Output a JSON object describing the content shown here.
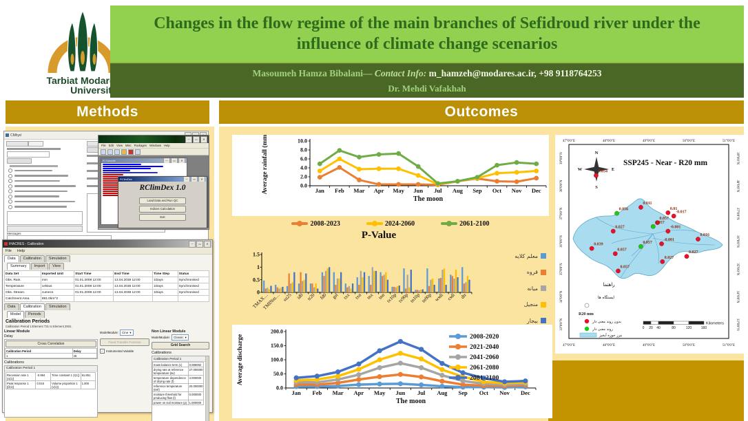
{
  "header": {
    "logo": {
      "line1": "Tarbiat Modares",
      "line2": "University"
    },
    "title": "Changes in the flow regime of the main branches of Sefidroud river under the influence of climate change scenarios",
    "author": {
      "name": "Masoumeh Hamza Bibalani",
      "separator": "— ",
      "contact_label": "Contact Info:",
      "contact_value": "m_hamzeh@modares.ac.ir, +98 9118764253",
      "supervisor": "Dr. Mehdi Vafakhah"
    }
  },
  "sections": {
    "methods_label": "Methods",
    "outcomes_label": "Outcomes"
  },
  "icons": {
    "minimize": "─",
    "maximize": "▭",
    "close": "✕",
    "dropdown": "▾",
    "check": "✓"
  },
  "methods": {
    "cmhyd": {
      "window_title": "CMhyd",
      "messages_label": "Messages"
    },
    "rgui": {
      "menu_items": [
        "File",
        "Edit",
        "View",
        "Misc",
        "Packages",
        "Windows",
        "Help"
      ],
      "console_title": "R Console",
      "rclimdex": {
        "dialog_title": "RClimDex",
        "heading": "RClimDex 1.0",
        "buttons": [
          "Load Data and Run QC",
          "Indices Calculation",
          "Exit"
        ]
      }
    },
    "ihacres": {
      "window_title": "IHACRES - Calibration",
      "menu_items": [
        "File",
        "Help"
      ],
      "tabs": [
        "Data",
        "Calibration",
        "Simulation"
      ],
      "subtabs": [
        "Summary",
        "Import",
        "View"
      ],
      "data_table": {
        "headers": [
          "Data Set",
          "Imported Unit",
          "Start Time",
          "End Time",
          "Time Step",
          "Status"
        ],
        "rows": [
          [
            "Obs. Rain.",
            "mm",
            "01.01.2008 12:00",
            "13.04.2038 12:00",
            "1Days",
            "Synchronised"
          ],
          [
            "Temperature",
            "celsius",
            "01.01.2008 12:00",
            "13.04.2038 12:00",
            "1Days",
            "Synchronised"
          ],
          [
            "Obs. Stream.",
            "cumecs",
            "01.01.2008 12:00",
            "13.04.2038 12:00",
            "1Days",
            "Synchronised"
          ],
          [
            "Catchment Area",
            "891.0km^2",
            "",
            "",
            "",
            ""
          ]
        ]
      },
      "tabs2": [
        "Data",
        "Calibration",
        "Simulation"
      ],
      "subtabs2": [
        "Model",
        "Periods"
      ],
      "calibration_periods_title": "Calibration Periods",
      "calibration_periods_note": "Calibration Period 1:Element 731 to Element 2931.",
      "linear_module_label": "Linear Module",
      "nonlinear_module_label": "Non Linear Module",
      "delay_label": "Delay",
      "model_module_label": "ModelModule:",
      "linear_model_value": "Cine",
      "nonlinear_model_value": "Classic",
      "cross_correlation_label": "Cross Correlation",
      "delay_table_headers": [
        "Calibration Period",
        "Delay"
      ],
      "delay_table_row": [
        "1",
        "26"
      ],
      "fixed_transfer_function_label": "Fixed Transfer Function",
      "instrumental_variable_label": "Instrumental Variable",
      "grid_search_label": "Grid Search",
      "calibrations_label": "Calibrations",
      "calibration_period_header": "Calibration Period 1",
      "linear_params": [
        {
          "label": "Recession rate 1 (a(1))",
          "value": "-0.984"
        },
        {
          "label": "Time constant 1 (τ(1))",
          "value": "61.851"
        },
        {
          "label": "Peak response 1 (β(1))",
          "value": "0.016"
        },
        {
          "label": "Volume proportion 1 (v(1))",
          "value": "1.000"
        }
      ],
      "nonlinear_params": [
        {
          "label": "mass balance term (c)",
          "value": "0.086082"
        },
        {
          "label": "drying rate at reference temperature (tw)",
          "value": "27.000000"
        },
        {
          "label": "temperature dependence of drying rate (f)",
          "value": "4.000000"
        },
        {
          "label": "reference temperature (tref)",
          "value": "20.000000"
        },
        {
          "label": "moisture threshold for producing flow (l)",
          "value": "0.000000"
        },
        {
          "label": "power on soil moisture (p)",
          "value": "1.000000"
        }
      ]
    }
  },
  "chart_data": [
    {
      "id": "rainfall",
      "type": "line",
      "xlabel": "The moon",
      "ylabel": "Average rainfall (mm)",
      "ylim": [
        0,
        10
      ],
      "yticks": [
        0,
        2,
        4,
        6,
        8,
        10
      ],
      "grid": false,
      "legend_position": "bottom",
      "categories": [
        "Jan",
        "Feb",
        "Mar",
        "Apr",
        "May",
        "Jun",
        "Jul",
        "Aug",
        "Sep",
        "Oct",
        "Nov",
        "Dec"
      ],
      "series": [
        {
          "name": "2008-2023",
          "color": "#E97F32",
          "values": [
            1.9,
            4.1,
            1.3,
            0.3,
            0.3,
            0.3,
            0.2,
            1.0,
            1.6,
            1.0,
            0.9,
            1.7
          ]
        },
        {
          "name": "2024-2060",
          "color": "#FFC000",
          "values": [
            3.3,
            6.0,
            3.7,
            3.8,
            3.8,
            2.3,
            0.3,
            1.0,
            1.7,
            2.8,
            3.0,
            3.3
          ]
        },
        {
          "name": "2061-2100",
          "color": "#6FAC46",
          "values": [
            4.9,
            7.9,
            6.4,
            7.0,
            7.2,
            4.3,
            0.5,
            1.0,
            1.9,
            4.6,
            5.2,
            4.9
          ]
        }
      ]
    },
    {
      "id": "pvalue",
      "type": "bar",
      "title": "P-Value",
      "ylim": [
        0,
        1.5
      ],
      "yticks": [
        0,
        0.5,
        1,
        1.5
      ],
      "ytick_labels": [
        "0",
        "0.5",
        "1",
        "1.5"
      ],
      "grid": false,
      "legend_position": "right",
      "categories": [
        "TMAX…",
        "TMINm…",
        "su25",
        "id0",
        "tr20",
        "fd0",
        "gsl",
        "txx",
        "txn",
        "tnx",
        "tnn",
        "tx10p",
        "tx90p",
        "tn10p",
        "tn90p",
        "wsdi",
        "csdi",
        "dtr"
      ],
      "series": [
        {
          "name": "معلم كلايه",
          "color": "#5B9BD5",
          "values": [
            0.47,
            0.3,
            0.25,
            0.35,
            0.35,
            0.8,
            0.8,
            0.35,
            0.6,
            0.65,
            0.8,
            0.22,
            0.95,
            0.1,
            0.95,
            0.55,
            0.7,
            1.0
          ]
        },
        {
          "name": "قروه",
          "color": "#ED7D31",
          "values": [
            0.15,
            0.2,
            0.75,
            0.8,
            0.35,
            0.65,
            0.3,
            0.2,
            0.3,
            0.3,
            0.65,
            0.22,
            0.15,
            0.1,
            0.25,
            0.57,
            0.65,
            0.35
          ]
        },
        {
          "name": "ميانه",
          "color": "#A5A5A5",
          "values": [
            0.18,
            0.15,
            0.35,
            0.45,
            0.2,
            0.85,
            0.55,
            0.25,
            0.85,
            1.0,
            0.7,
            0.2,
            0.7,
            0.08,
            0.5,
            0.9,
            0.55,
            0.4
          ]
        },
        {
          "name": "منجيل",
          "color": "#FFC000",
          "values": [
            0.12,
            0.18,
            0.4,
            0.5,
            0.35,
            0.95,
            0.55,
            0.15,
            0.6,
            0.85,
            0.8,
            0.25,
            0.2,
            0.1,
            0.55,
            0.95,
            0.9,
            0.65
          ]
        },
        {
          "name": "بيجار",
          "color": "#4472C4",
          "values": [
            0.26,
            0.22,
            0.8,
            0.75,
            0.15,
            1.0,
            0.8,
            0.35,
            0.8,
            0.85,
            0.5,
            0.27,
            0.9,
            0.12,
            0.3,
            0.3,
            0.6,
            0.5
          ]
        }
      ]
    },
    {
      "id": "discharge",
      "type": "line",
      "xlabel": "The moon",
      "ylabel": "Average discharge",
      "ylim": [
        0,
        200
      ],
      "yticks": [
        0,
        50,
        100,
        150,
        200
      ],
      "grid": false,
      "legend_position": "inside-right",
      "categories": [
        "Jan",
        "Feb",
        "Mar",
        "Apr",
        "May",
        "Jun",
        "Jul",
        "Aug",
        "Sep",
        "Oct",
        "Nov",
        "Dec"
      ],
      "series": [
        {
          "name": "2008-2020",
          "color": "#5B9BD5",
          "values": [
            5,
            5,
            7,
            12,
            14,
            15,
            11,
            6,
            3,
            3,
            2,
            4
          ]
        },
        {
          "name": "2021-2040",
          "color": "#ED7D31",
          "values": [
            12,
            12,
            18,
            30,
            40,
            48,
            39,
            24,
            12,
            8,
            7,
            10
          ]
        },
        {
          "name": "2041-2060",
          "color": "#A5A5A5",
          "values": [
            20,
            20,
            30,
            47,
            72,
            88,
            72,
            45,
            25,
            15,
            12,
            15
          ]
        },
        {
          "name": "2061-2080",
          "color": "#FFC000",
          "values": [
            27,
            30,
            42,
            66,
            100,
            123,
            103,
            65,
            40,
            22,
            17,
            20
          ]
        },
        {
          "name": "2081-2100",
          "color": "#4472C4",
          "values": [
            36,
            42,
            57,
            85,
            132,
            165,
            137,
            87,
            54,
            35,
            22,
            25
          ]
        }
      ]
    }
  ],
  "map": {
    "title": "SSP245 - Near - R20 mm",
    "top_labels": [
      "47°0'0\"E",
      "48°0'0\"E",
      "49°0'0\"E",
      "50°0'0\"E",
      "51°0'0\"E"
    ],
    "bottom_labels": [
      "47°0'0\"E",
      "48°0'0\"E",
      "49°0'0\"E",
      "50°0'0\"E",
      "51°0'0\"E"
    ],
    "left_labels": [
      "39°0'0\"N",
      "38°0'0\"N",
      "37°0'0\"N",
      "36°0'0\"N",
      "35°0'0\"N",
      "34°0'0\"N",
      "33°0'0\"N"
    ],
    "right_labels": [
      "39°0'0\"N",
      "38°0'0\"N",
      "37°0'0\"N",
      "36°0'0\"N",
      "35°0'0\"N",
      "34°0'0\"N",
      "33°0'0\"N"
    ],
    "compass": [
      "N",
      "E",
      "S",
      "W"
    ],
    "stations": [
      {
        "fx": 17.0,
        "fy": 16.0,
        "label": "0.054",
        "type": "red"
      },
      {
        "fx": 45.0,
        "fy": 32.4,
        "label": "0.011",
        "type": "red"
      },
      {
        "fx": 30.0,
        "fy": 35.5,
        "label": "0.056",
        "type": "green"
      },
      {
        "fx": 62.0,
        "fy": 35.2,
        "label": "0.01",
        "type": "red"
      },
      {
        "fx": 65.6,
        "fy": 36.9,
        "label": "-0.017",
        "type": "red"
      },
      {
        "fx": 55.4,
        "fy": 40.3,
        "label": "0.057",
        "type": "red"
      },
      {
        "fx": 52.7,
        "fy": 42.3,
        "label": "0.057",
        "type": "green"
      },
      {
        "fx": 27.7,
        "fy": 44.7,
        "label": "0.027",
        "type": "red"
      },
      {
        "fx": 62.0,
        "fy": 44.7,
        "label": "-0.001",
        "type": "red"
      },
      {
        "fx": 80.8,
        "fy": 48.8,
        "label": "0.016",
        "type": "red"
      },
      {
        "fx": 14.3,
        "fy": 53.6,
        "label": "0.039",
        "type": "red"
      },
      {
        "fx": 29.0,
        "fy": 56.3,
        "label": "0.057",
        "type": "red"
      },
      {
        "fx": 45.0,
        "fy": 52.6,
        "label": "0.057",
        "type": "green"
      },
      {
        "fx": 58.0,
        "fy": 51.2,
        "label": "-0.001",
        "type": "red"
      },
      {
        "fx": 58.5,
        "fy": 60.4,
        "label": "0.027",
        "type": "red"
      },
      {
        "fx": 73.7,
        "fy": 57.7,
        "label": "0.027",
        "type": "red"
      },
      {
        "fx": 30.8,
        "fy": 65.2,
        "label": "0.057",
        "type": "red"
      }
    ],
    "legend": {
      "title": "راهنما",
      "stations_label": "ایستگاه ها",
      "r20_label": "R20 mm",
      "red_label": "بدون روند معنی دار",
      "green_label": "روند معنی دار",
      "basin_label": "مرز حوزه آبخیز"
    },
    "scale_numbers": [
      "0",
      "20",
      "40",
      "80",
      "120",
      "160"
    ],
    "scale_unit": "Kilometers",
    "colors": {
      "water": "#A9DCEE",
      "red": "#E8112D",
      "green": "#17CE17",
      "label": "#8B2A10"
    }
  }
}
